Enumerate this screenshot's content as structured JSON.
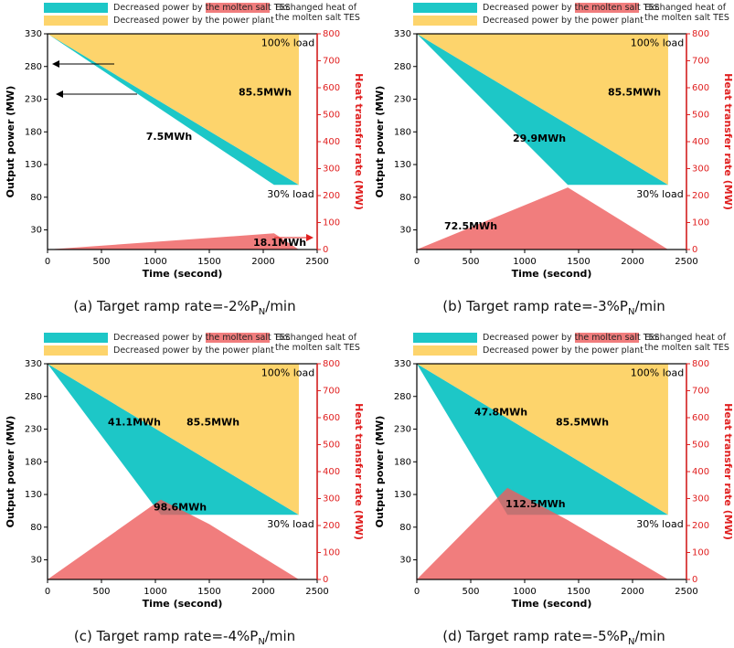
{
  "chart_data": [
    {
      "type": "area",
      "x_label": "Time (second)",
      "y_label": "Output power (MW)",
      "y2_label": "Heat transfer rate (MW)",
      "caption": {
        "prefix": "(a) Target ramp rate=-2%P",
        "subscript": "N",
        "suffix": "/min"
      },
      "xlim": [
        0,
        2500
      ],
      "xticks": [
        0,
        500,
        1000,
        1500,
        2000,
        2500
      ],
      "ylim": [
        0,
        330
      ],
      "yticks": [
        30,
        80,
        130,
        180,
        230,
        280,
        330
      ],
      "y2lim": [
        0,
        800
      ],
      "y2ticks": [
        0,
        100,
        200,
        300,
        400,
        500,
        600,
        700,
        800
      ],
      "series": [
        {
          "name": "Decreased power by the molten salt TES",
          "color": "#1dc7c7",
          "x": [
            0,
            2330,
            2100
          ],
          "values": [
            330,
            99,
            99
          ]
        },
        {
          "name": "Decreased power by the power plant",
          "color": "#fdd46c",
          "x": [
            0,
            2330,
            2330
          ],
          "values": [
            330,
            330,
            99
          ]
        },
        {
          "name": "Exchanged heat of the molten salt TES",
          "color": "#ee5c5c",
          "axis": "y2",
          "x": [
            0,
            2100,
            2330
          ],
          "values": [
            0,
            60,
            0
          ]
        }
      ],
      "annotations": [
        "100% load",
        "85.5MWh",
        "7.5MWh",
        "18.1MWh",
        "30% load"
      ]
    },
    {
      "type": "area",
      "x_label": "Time (second)",
      "y_label": "Output power (MW)",
      "y2_label": "Heat transfer rate (MW)",
      "caption": {
        "prefix": "(b) Target ramp rate=-3%P",
        "subscript": "N",
        "suffix": "/min"
      },
      "xlim": [
        0,
        2500
      ],
      "xticks": [
        0,
        500,
        1000,
        1500,
        2000,
        2500
      ],
      "ylim": [
        0,
        330
      ],
      "yticks": [
        30,
        80,
        130,
        180,
        230,
        280,
        330
      ],
      "y2lim": [
        0,
        800
      ],
      "y2ticks": [
        0,
        100,
        200,
        300,
        400,
        500,
        600,
        700,
        800
      ],
      "series": [
        {
          "name": "Decreased power by the molten salt TES",
          "color": "#1dc7c7",
          "x": [
            0,
            2330,
            1400
          ],
          "values": [
            330,
            99,
            99
          ]
        },
        {
          "name": "Decreased power by the power plant",
          "color": "#fdd46c",
          "x": [
            0,
            2330,
            2330
          ],
          "values": [
            330,
            330,
            99
          ]
        },
        {
          "name": "Exchanged heat of the molten salt TES",
          "color": "#ee5c5c",
          "axis": "y2",
          "x": [
            0,
            1400,
            2330
          ],
          "values": [
            0,
            230,
            0
          ]
        }
      ],
      "annotations": [
        "100% load",
        "85.5MWh",
        "29.9MWh",
        "72.5MWh",
        "30% load"
      ]
    },
    {
      "type": "area",
      "x_label": "Time (second)",
      "y_label": "Output power (MW)",
      "y2_label": "Heat transfer rate (MW)",
      "caption": {
        "prefix": "(c) Target ramp rate=-4%P",
        "subscript": "N",
        "suffix": "/min"
      },
      "xlim": [
        0,
        2500
      ],
      "xticks": [
        0,
        500,
        1000,
        1500,
        2000,
        2500
      ],
      "ylim": [
        0,
        330
      ],
      "yticks": [
        30,
        80,
        130,
        180,
        230,
        280,
        330
      ],
      "y2lim": [
        0,
        800
      ],
      "y2ticks": [
        0,
        100,
        200,
        300,
        400,
        500,
        600,
        700,
        800
      ],
      "series": [
        {
          "name": "Decreased power by the molten salt TES",
          "color": "#1dc7c7",
          "x": [
            0,
            2330,
            1050
          ],
          "values": [
            330,
            99,
            99
          ]
        },
        {
          "name": "Decreased power by the power plant",
          "color": "#fdd46c",
          "x": [
            0,
            2330,
            2330
          ],
          "values": [
            330,
            330,
            99
          ]
        },
        {
          "name": "Exchanged heat of the molten salt TES",
          "color": "#ee5c5c",
          "axis": "y2",
          "x": [
            0,
            1050,
            1500,
            2330
          ],
          "values": [
            0,
            296,
            205,
            0
          ]
        }
      ],
      "annotations": [
        "100% load",
        "85.5MWh",
        "41.1MWh",
        "98.6MWh",
        "30% load"
      ]
    },
    {
      "type": "area",
      "x_label": "Time (second)",
      "y_label": "Output power (MW)",
      "y2_label": "Heat transfer rate (MW)",
      "caption": {
        "prefix": "(d) Target ramp rate=-5%P",
        "subscript": "N",
        "suffix": "/min"
      },
      "xlim": [
        0,
        2500
      ],
      "xticks": [
        0,
        500,
        1000,
        1500,
        2000,
        2500
      ],
      "ylim": [
        0,
        330
      ],
      "yticks": [
        30,
        80,
        130,
        180,
        230,
        280,
        330
      ],
      "y2lim": [
        0,
        800
      ],
      "y2ticks": [
        0,
        100,
        200,
        300,
        400,
        500,
        600,
        700,
        800
      ],
      "series": [
        {
          "name": "Decreased power by the molten salt TES",
          "color": "#1dc7c7",
          "x": [
            0,
            2330,
            840
          ],
          "values": [
            330,
            99,
            99
          ]
        },
        {
          "name": "Decreased power by the power plant",
          "color": "#fdd46c",
          "x": [
            0,
            2330,
            2330
          ],
          "values": [
            330,
            330,
            99
          ]
        },
        {
          "name": "Exchanged heat of the molten salt TES",
          "color": "#ee5c5c",
          "axis": "y2",
          "x": [
            0,
            840,
            1400,
            2330
          ],
          "values": [
            0,
            340,
            220,
            0
          ]
        }
      ],
      "annotations": [
        "100% load",
        "85.5MWh",
        "47.8MWh",
        "112.5MWh",
        "30% load"
      ]
    }
  ]
}
